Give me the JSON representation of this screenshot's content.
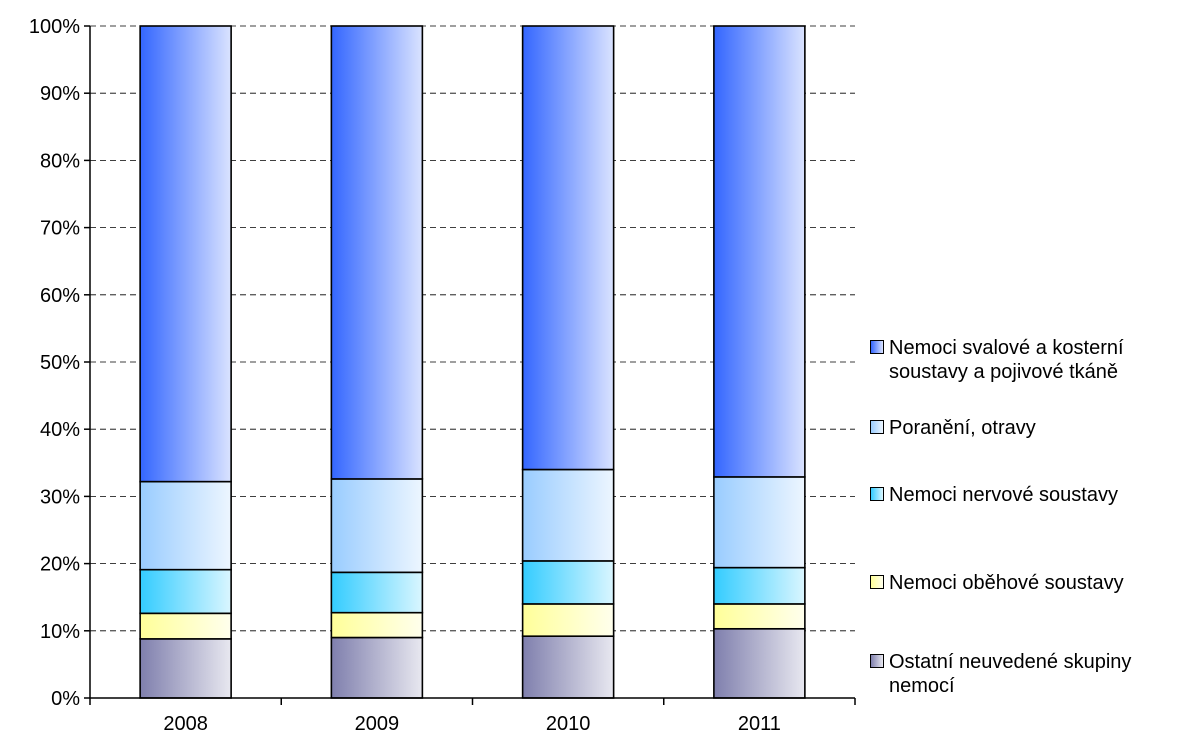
{
  "chart_data": {
    "type": "bar",
    "stacked": true,
    "normalized": true,
    "categories": [
      "2008",
      "2009",
      "2010",
      "2011"
    ],
    "series": [
      {
        "name": "Ostatní neuvedené skupiny nemocí",
        "values": [
          8.8,
          9.0,
          9.2,
          10.3
        ],
        "color": "#7f7fad"
      },
      {
        "name": "Nemoci oběhové soustavy",
        "values": [
          3.8,
          3.7,
          4.8,
          3.7
        ],
        "color": "#ffff99"
      },
      {
        "name": "Nemoci nervové soustavy",
        "values": [
          6.5,
          6.0,
          6.4,
          5.4
        ],
        "color": "#33ccff"
      },
      {
        "name": "Poranění, otravy",
        "values": [
          13.1,
          13.9,
          13.6,
          13.5
        ],
        "color": "#99ccff"
      },
      {
        "name": "Nemoci svalové  a kosterní soustavy a pojivové tkáně",
        "values": [
          67.8,
          67.4,
          66.0,
          67.1
        ],
        "color": "#3366ff"
      }
    ],
    "yticks": [
      "0%",
      "10%",
      "20%",
      "30%",
      "40%",
      "50%",
      "60%",
      "70%",
      "80%",
      "90%",
      "100%"
    ],
    "ylim": [
      0,
      100
    ],
    "grid": true,
    "legend_position": "right"
  }
}
